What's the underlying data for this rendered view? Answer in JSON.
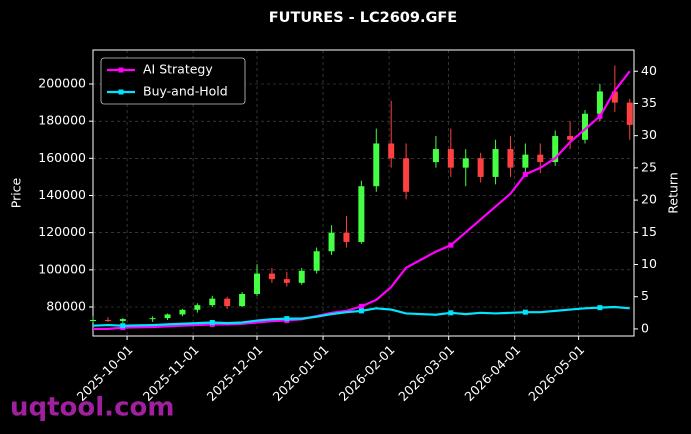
{
  "chart_data": {
    "type": "candlestick",
    "title": "FUTURES - LC2609.GFE",
    "y_label": "Price",
    "y2_label": "Return",
    "watermark": "uqtool.com",
    "x": [
      "2025-09-15",
      "2025-09-22",
      "2025-09-29",
      "2025-10-13",
      "2025-10-20",
      "2025-10-27",
      "2025-11-03",
      "2025-11-10",
      "2025-11-17",
      "2025-11-24",
      "2025-12-01",
      "2025-12-08",
      "2025-12-15",
      "2025-12-22",
      "2025-12-29",
      "2026-01-05",
      "2026-01-12",
      "2026-01-19",
      "2026-01-26",
      "2026-02-02",
      "2026-02-09",
      "2026-02-23",
      "2026-03-02",
      "2026-03-09",
      "2026-03-16",
      "2026-03-23",
      "2026-03-30",
      "2026-04-06",
      "2026-04-13",
      "2026-04-20",
      "2026-04-27",
      "2026-05-04",
      "2026-05-11",
      "2026-05-18",
      "2026-05-25"
    ],
    "open": [
      72500,
      73000,
      72500,
      73500,
      74000,
      76000,
      78500,
      81000,
      84500,
      80500,
      87000,
      98000,
      95000,
      93000,
      99500,
      110000,
      120000,
      115000,
      145000,
      168000,
      160000,
      158000,
      165000,
      155000,
      160000,
      150000,
      165000,
      155000,
      162000,
      158000,
      172000,
      170000,
      184000,
      196000,
      190000
    ],
    "high": [
      75000,
      74500,
      74000,
      75000,
      76500,
      79000,
      82000,
      86000,
      85500,
      88000,
      103000,
      101000,
      99000,
      101000,
      112000,
      124000,
      129000,
      148000,
      176000,
      191000,
      168000,
      172000,
      176000,
      165000,
      163000,
      170000,
      172000,
      168000,
      168000,
      175000,
      180000,
      186000,
      200000,
      210000,
      192000
    ],
    "low": [
      71500,
      72000,
      71500,
      72000,
      73000,
      75000,
      77000,
      80000,
      79000,
      80000,
      86000,
      93000,
      91000,
      92000,
      98000,
      108000,
      112000,
      114000,
      142000,
      155000,
      138000,
      155000,
      150000,
      145000,
      147000,
      146000,
      150000,
      150000,
      152000,
      156000,
      165000,
      168000,
      180000,
      185000,
      170000
    ],
    "close": [
      73000,
      72500,
      73500,
      74000,
      76000,
      78500,
      81000,
      84500,
      80500,
      87000,
      98000,
      95000,
      93000,
      99500,
      110000,
      120000,
      115000,
      145000,
      168000,
      160000,
      142000,
      165000,
      155000,
      160000,
      150000,
      165000,
      155000,
      162000,
      158000,
      172000,
      170000,
      184000,
      196000,
      190000,
      178000
    ],
    "up_color": "#44ff44",
    "down_color": "#ff4040",
    "series": [
      {
        "name": "AI Strategy",
        "color": "#ff00ff",
        "axis": "y2",
        "values": [
          0,
          0,
          0.2,
          0.3,
          0.4,
          0.5,
          0.6,
          0.7,
          0.7,
          0.8,
          1.0,
          1.2,
          1.3,
          1.5,
          2.0,
          2.5,
          2.8,
          3.5,
          4.5,
          6.5,
          9.5,
          12,
          13,
          15,
          17,
          19,
          21,
          24,
          25,
          26.5,
          29,
          31,
          33,
          37,
          40
        ]
      },
      {
        "name": "Buy-and-Hold",
        "color": "#00e5ff",
        "axis": "y2",
        "values": [
          0.5,
          0.6,
          0.5,
          0.6,
          0.7,
          0.8,
          0.9,
          1.0,
          0.9,
          1.0,
          1.3,
          1.5,
          1.6,
          1.6,
          1.9,
          2.3,
          2.6,
          2.8,
          3.2,
          3.0,
          2.4,
          2.2,
          2.5,
          2.3,
          2.5,
          2.4,
          2.5,
          2.6,
          2.6,
          2.8,
          3.0,
          3.2,
          3.3,
          3.4,
          3.2
        ]
      }
    ],
    "xlim": [
      "2025-09-15",
      "2026-05-27"
    ],
    "xticks": [
      "2025-10-01",
      "2025-11-01",
      "2025-12-01",
      "2026-01-01",
      "2026-02-01",
      "2026-03-01",
      "2026-04-01",
      "2026-05-01"
    ],
    "ylim": [
      64400,
      218300
    ],
    "yticks": [
      80000,
      100000,
      120000,
      140000,
      160000,
      180000,
      200000
    ],
    "y2lim": [
      -1.1,
      43.3
    ],
    "y2ticks": [
      0,
      5,
      10,
      15,
      20,
      25,
      30,
      35,
      40
    ],
    "grid": true,
    "legend": "upper left"
  }
}
